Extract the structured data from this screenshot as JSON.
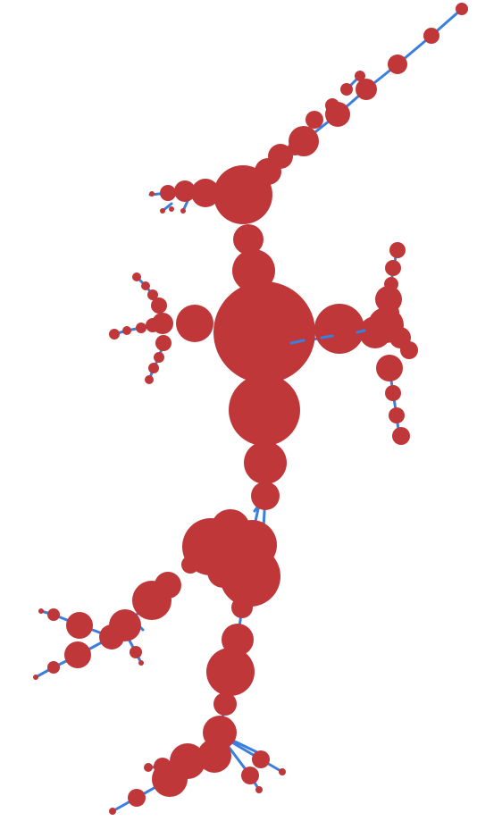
{
  "diagram": {
    "type": "network-graph",
    "colors": {
      "background": "#ffffff",
      "node": "#c0373a",
      "edge": "#3a7fe0"
    }
  }
}
